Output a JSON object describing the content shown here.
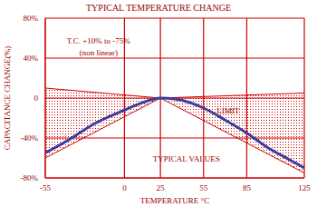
{
  "chart_data": {
    "type": "line",
    "title": "TYPICAL TEMPERATURE CHANGE",
    "x_label": "TEMPERATURE °C",
    "y_label": "CAPACITANCE CHANGE(%)",
    "xlim": [
      -55,
      125
    ],
    "xticks": [
      -55,
      0,
      25,
      55,
      85,
      125
    ],
    "ylim": [
      -80,
      80
    ],
    "yticks": [
      {
        "value": -80,
        "label": "-80%"
      },
      {
        "value": -40,
        "label": "-40%"
      },
      0,
      {
        "value": 40,
        "label": "40%"
      },
      {
        "value": 80,
        "label": "80%"
      }
    ],
    "grid": true,
    "annotations": [
      "T.C. +10% to -75%",
      "(non linear)"
    ],
    "series": [
      {
        "name": "LIMIT",
        "type": "area",
        "color": "#cc0000",
        "x": [
          -55,
          25,
          125
        ],
        "upper": [
          10,
          0,
          5
        ],
        "lower": [
          -60,
          0,
          -75
        ]
      },
      {
        "name": "TYPICAL VALUES",
        "type": "line",
        "color": "#3c3c9c",
        "x": [
          -55,
          -40,
          -20,
          0,
          10,
          25,
          35,
          55,
          70,
          85,
          100,
          115,
          125
        ],
        "values": [
          -55,
          -43,
          -25,
          -12,
          -6,
          0,
          -1,
          -10,
          -22,
          -35,
          -50,
          -62,
          -70
        ]
      }
    ]
  }
}
